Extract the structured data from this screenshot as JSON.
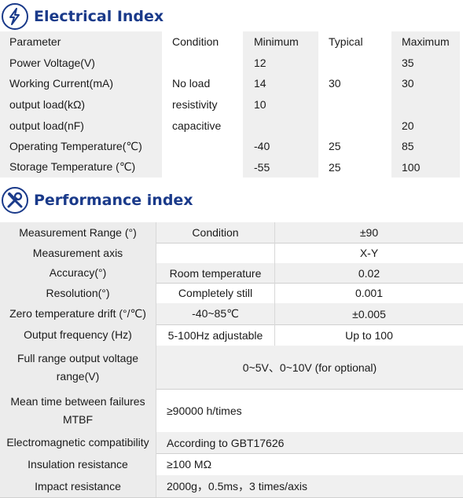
{
  "electrical": {
    "title": "Electrical Index",
    "icon": "lightning-bolt-icon",
    "header": [
      "Parameter",
      "Condition",
      "Minimum",
      "Typical",
      "Maximum"
    ],
    "rows": [
      [
        "Power Voltage(V)",
        "",
        "12",
        "",
        "35"
      ],
      [
        "Working Current(mA)",
        "No load",
        "14",
        "30",
        "30"
      ],
      [
        "output load(kΩ)",
        "resistivity",
        "10",
        "",
        ""
      ],
      [
        "output load(nF)",
        "capacitive",
        "",
        "",
        "20"
      ],
      [
        "Operating Temperature(℃)",
        "",
        "-40",
        "25",
        "85"
      ],
      [
        "Storage Temperature (℃)",
        "",
        "-55",
        "25",
        "100"
      ]
    ]
  },
  "performance": {
    "title": "Performance index",
    "icon": "wrench-screwdriver-icon",
    "rows": [
      {
        "p": "Measurement Range (°)",
        "c": "Condition",
        "v": "±90"
      },
      {
        "p": "Measurement axis",
        "c": "",
        "v": "X-Y"
      },
      {
        "p": "Accuracy(°)",
        "c": "Room temperature",
        "v": "0.02"
      },
      {
        "p": "Resolution(°)",
        "c": "Completely still",
        "v": "0.001"
      },
      {
        "p": "Zero temperature drift (°/℃)",
        "c": "-40~85℃",
        "v": "±0.005"
      },
      {
        "p": "Output frequency (Hz)",
        "c": "5-100Hz adjustable",
        "v": "Up to 100"
      },
      {
        "p": "Full range output voltage range(V)",
        "w": "0~5V、0~10V (for optional)"
      },
      {
        "p": "Mean time between failures MTBF",
        "l": "≥90000 h/times"
      },
      {
        "p": "Electromagnetic compatibility",
        "l": "According to GBT17626"
      },
      {
        "p": "Insulation resistance",
        "l": "≥100 MΩ"
      },
      {
        "p": "Impact resistance",
        "l": "2000g，0.5ms，3 times/axis"
      }
    ]
  },
  "colors": {
    "accent": "#1a3a8a",
    "row_shade": "#f0f0f0"
  }
}
